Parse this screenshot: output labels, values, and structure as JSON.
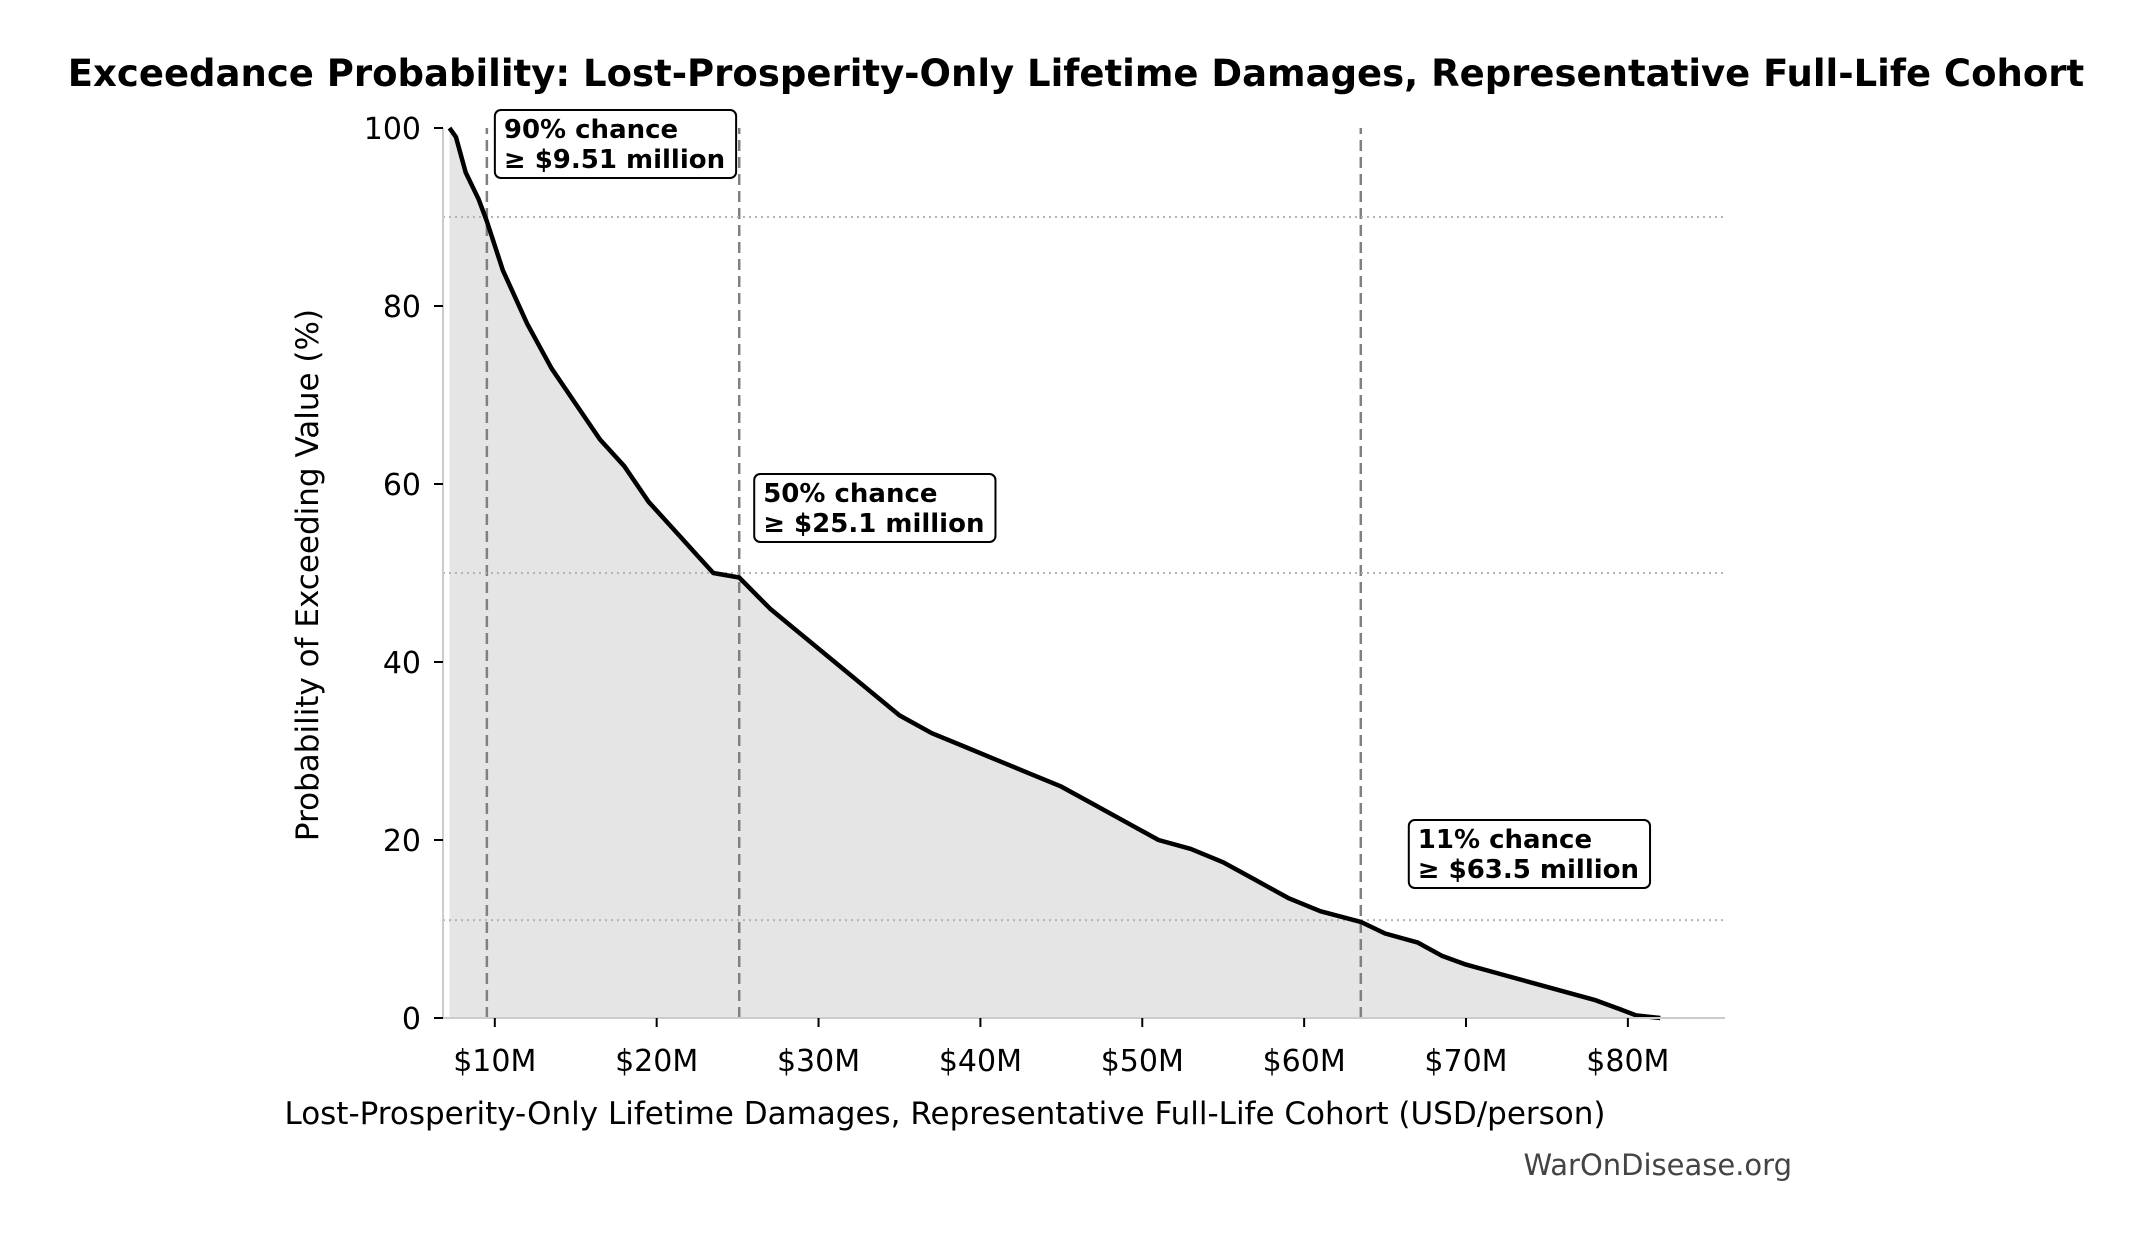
{
  "chart_data": {
    "type": "area",
    "title": "Exceedance Probability: Lost-Prosperity-Only Lifetime Damages, Representative Full-Life Cohort",
    "xlabel": "Lost-Prosperity-Only Lifetime Damages, Representative Full-Life Cohort (USD/person)",
    "ylabel": "Probability of Exceeding Value (%)",
    "xlim": [
      6.8,
      86
    ],
    "ylim": [
      0,
      100
    ],
    "x_ticks": [
      10,
      20,
      30,
      40,
      50,
      60,
      70,
      80
    ],
    "x_tick_labels": [
      "$10M",
      "$20M",
      "$30M",
      "$40M",
      "$50M",
      "$60M",
      "$70M",
      "$80M"
    ],
    "y_ticks": [
      0,
      20,
      40,
      60,
      80,
      100
    ],
    "y_tick_labels": [
      "0",
      "20",
      "40",
      "60",
      "80",
      "100"
    ],
    "series": [
      {
        "x": [
          7.2,
          7.6,
          8.2,
          9.0,
          9.51,
          10.5,
          12.0,
          13.5,
          15.0,
          16.5,
          18.0,
          19.5,
          21.0,
          22.5,
          23.5,
          25.1,
          27.0,
          29.0,
          31.0,
          33.0,
          35.0,
          37.0,
          39.0,
          41.0,
          43.0,
          45.0,
          47.0,
          49.0,
          51.0,
          53.0,
          55.0,
          57.0,
          59.0,
          61.0,
          63.5,
          65.0,
          67.0,
          68.5,
          70.0,
          72.0,
          74.0,
          76.0,
          78.0,
          79.5,
          80.5,
          82.0
        ],
        "y": [
          100,
          99,
          95,
          92,
          89.5,
          84,
          78,
          73,
          69,
          65,
          62,
          58,
          55,
          52,
          50,
          49.5,
          46,
          43,
          40,
          37,
          34,
          32,
          30.5,
          29,
          27.5,
          26,
          24,
          22,
          20,
          19,
          17.5,
          15.5,
          13.5,
          12,
          10.8,
          9.5,
          8.5,
          7,
          6,
          5,
          4,
          3,
          2,
          1,
          0.3,
          0
        ]
      }
    ],
    "fill_color": "#e5e5e5",
    "line_color": "#000000",
    "markers": [
      {
        "x": 9.51,
        "y": 90,
        "text_line1": "90% chance",
        "text_line2": "≥ $9.51 million"
      },
      {
        "x": 25.1,
        "y": 50,
        "text_line1": "50% chance",
        "text_line2": "≥ $25.1 million"
      },
      {
        "x": 63.5,
        "y": 11,
        "text_line1": "11% chance",
        "text_line2": "≥ $63.5 million"
      }
    ],
    "grid": false,
    "watermark": "WarOnDisease.org"
  }
}
